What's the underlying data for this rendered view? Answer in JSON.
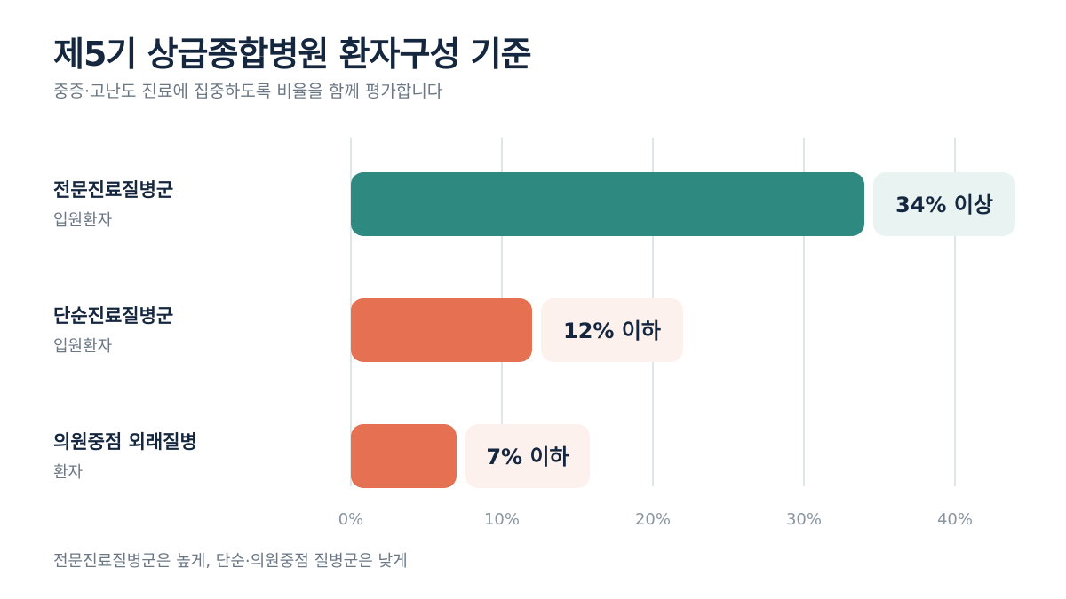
{
  "title": "제5기 상급종합병원 환자구성 기준",
  "subtitle": "중증·고난도 진료에 집중하도록 비율을 함께 평가합니다",
  "footnote": "전문진료질병군은 높게, 단순·의원중점 질병군은 낮게",
  "colors": {
    "high": "#2e8a80",
    "high_label_bg": "#e8f3f2",
    "low": "#e57052",
    "low_label_bg": "#fdf1ed",
    "grid": "#d4dde0"
  },
  "chart_data": {
    "type": "bar",
    "orientation": "horizontal",
    "categories": [
      {
        "name": "전문진료질병군",
        "sub": "입원환자"
      },
      {
        "name": "단순진료질병군",
        "sub": "입원환자"
      },
      {
        "name": "의원중점 외래질병",
        "sub": "환자"
      }
    ],
    "values": [
      34,
      12,
      7
    ],
    "value_labels": [
      "34% 이상",
      "12% 이하",
      "7% 이하"
    ],
    "bar_colors": [
      "high",
      "low",
      "low"
    ],
    "xlim": [
      0,
      40
    ],
    "xticks": [
      "0%",
      "10%",
      "20%",
      "30%",
      "40%"
    ],
    "grid": true
  }
}
